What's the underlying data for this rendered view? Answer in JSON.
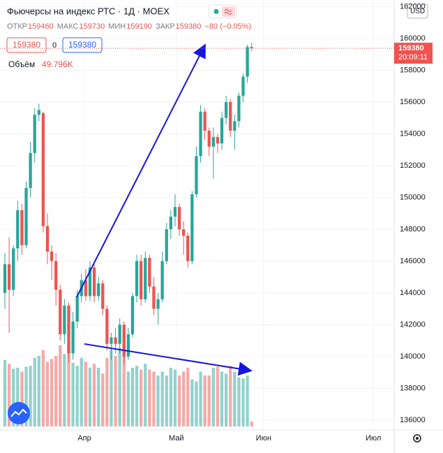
{
  "chart_data": {
    "type": "candlestick",
    "title": "Фьючерсы на индекс РТС · 1Д · MOEX",
    "open_label": "ОТКР",
    "high_label": "МАКС",
    "low_label": "МИН",
    "close_label": "ЗАКР",
    "change": "−80 (−0.05%)",
    "spread": "0",
    "volume_title": "Объём",
    "volume_last_label": "49.796K",
    "currency": "USD",
    "countdown": "20:09:11",
    "open": [
      144000,
      145800,
      144200,
      146800,
      149200,
      147000,
      150600,
      152800,
      155200,
      155300,
      148200,
      146600,
      146000,
      144200,
      141400,
      143200,
      140200,
      142200,
      143800,
      144800,
      143800,
      145600,
      143800,
      144600,
      143000,
      140800,
      141200,
      140800,
      142000,
      140000,
      141400,
      143800,
      146000,
      143600,
      146200,
      144400,
      143000,
      143600,
      146000,
      148000,
      148800,
      149400,
      148000,
      147600,
      146000,
      150200,
      152600,
      155400,
      154200,
      153200,
      153800,
      153400,
      155000,
      156000,
      154200,
      154800,
      156400,
      157600,
      159460
    ],
    "high": [
      146500,
      147500,
      147000,
      149800,
      149600,
      151000,
      153500,
      155600,
      155900,
      155400,
      149000,
      147000,
      146500,
      144500,
      143600,
      143400,
      142800,
      144200,
      145200,
      145500,
      146000,
      145800,
      145000,
      144800,
      143200,
      141500,
      141800,
      142400,
      142200,
      141800,
      144000,
      146400,
      146400,
      146600,
      146400,
      145000,
      144000,
      146600,
      148400,
      149200,
      150200,
      149600,
      148500,
      147800,
      150400,
      153200,
      155800,
      155600,
      154400,
      154400,
      154000,
      155400,
      156400,
      156200,
      155200,
      156600,
      157800,
      159600,
      159730
    ],
    "low": [
      143000,
      141500,
      143800,
      146000,
      146400,
      146800,
      150000,
      152200,
      154800,
      147800,
      145800,
      144800,
      143200,
      141000,
      140800,
      139600,
      139800,
      141800,
      143400,
      143500,
      143500,
      143400,
      143500,
      142600,
      140400,
      139800,
      140200,
      140200,
      139500,
      139800,
      141200,
      143400,
      143200,
      143400,
      144000,
      142600,
      142000,
      143400,
      145800,
      147400,
      148200,
      147600,
      146400,
      145600,
      145800,
      150000,
      152200,
      153600,
      152600,
      151200,
      152800,
      153000,
      154600,
      153800,
      153000,
      154400,
      156000,
      157200,
      159190
    ],
    "close": [
      145800,
      144200,
      146800,
      149200,
      147000,
      150600,
      152800,
      155200,
      155500,
      148200,
      146600,
      146000,
      144200,
      141400,
      143200,
      140200,
      142200,
      143800,
      144800,
      143800,
      145600,
      143800,
      144600,
      143000,
      140800,
      141200,
      140800,
      142000,
      140000,
      141400,
      143800,
      146000,
      143600,
      146200,
      144400,
      143000,
      143600,
      146000,
      148000,
      148800,
      149400,
      148000,
      147600,
      146000,
      150200,
      152600,
      155400,
      154200,
      153200,
      153800,
      153400,
      155000,
      156000,
      154200,
      154800,
      156400,
      157600,
      159460,
      159380
    ],
    "volume": [
      680,
      640,
      590,
      600,
      560,
      610,
      620,
      700,
      720,
      780,
      660,
      690,
      720,
      830,
      740,
      860,
      650,
      620,
      700,
      660,
      600,
      640,
      600,
      540,
      700,
      780,
      720,
      800,
      840,
      560,
      600,
      620,
      580,
      640,
      580,
      560,
      520,
      560,
      520,
      600,
      580,
      520,
      560,
      600,
      480,
      460,
      560,
      520,
      520,
      600,
      610,
      560,
      540,
      620,
      560,
      500,
      490,
      520,
      49.796
    ],
    "up_color": "#26a69a",
    "down_color": "#ef5350",
    "vlim": [
      0,
      900
    ],
    "ylim": [
      135385,
      162418
    ],
    "yticks": [
      136000,
      138000,
      140000,
      142000,
      144000,
      146000,
      148000,
      150000,
      152000,
      154000,
      156000,
      158000,
      160000,
      162000
    ],
    "xlim": [
      -1.15,
      91.5
    ],
    "xticks": [
      {
        "value": 18.7,
        "label": "Апр"
      },
      {
        "value": 40.3,
        "label": "Май"
      },
      {
        "value": 60.8,
        "label": "Июн"
      },
      {
        "value": 86.6,
        "label": "Июл"
      }
    ],
    "grid": true
  }
}
